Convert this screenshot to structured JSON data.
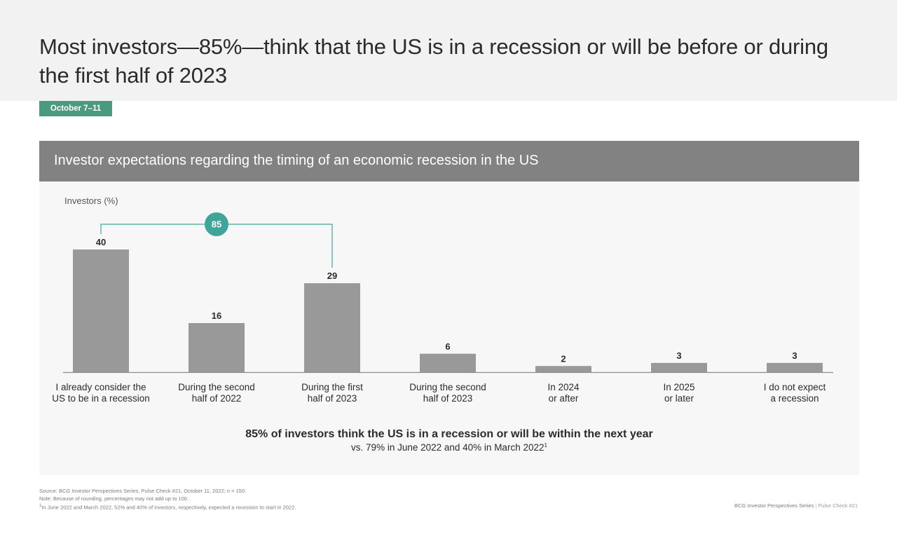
{
  "page": {
    "title": "Most investors—85%—think that the US is in a recession or will be before or during the first half of 2023",
    "date_tag": "October 7–11"
  },
  "chart_panel": {
    "title": "Investor expectations regarding the timing of an economic recession in the US"
  },
  "chart_data": {
    "type": "bar",
    "title": "Investor expectations regarding the timing of an economic recession in the US",
    "ylabel": "Investors (%)",
    "xlabel": "",
    "ylim": [
      0,
      40
    ],
    "grid": false,
    "categories": [
      [
        "I already consider the",
        "US to be in a recession"
      ],
      [
        "During the second",
        "half of 2022"
      ],
      [
        "During the first",
        "half of 2023"
      ],
      [
        "During the second",
        "half of 2023"
      ],
      [
        "In 2024",
        "or after"
      ],
      [
        "In 2025",
        "or later"
      ],
      [
        "I do not expect",
        "a recession"
      ]
    ],
    "values": [
      40,
      16,
      29,
      6,
      2,
      3,
      3
    ],
    "bar_color": "#999999",
    "bracket": {
      "label": "85",
      "from_index": 0,
      "to_index": 2,
      "color": "#3fa59a"
    },
    "summary": {
      "headline": "85% of investors think the US is in a recession or will be within the next year",
      "sub": "vs. 79% in June 2022 and 40% in March 2022",
      "sub_sup": "1"
    }
  },
  "footer": {
    "source": "Source: BCG Investor Perspectives Series, Pulse Check #21, October 11, 2022; n = 150.",
    "note": "Note: Because of rounding, percentages may not add up to 100.",
    "footnote_marker": "1",
    "footnote": "In June 2022 and March 2022, 52% and 40% of investors, respectively, expected a recession to start in 2022.",
    "series_name": "BCG Investor Perspectives Series",
    "separator": "|",
    "series_issue": "Pulse Check #21"
  }
}
